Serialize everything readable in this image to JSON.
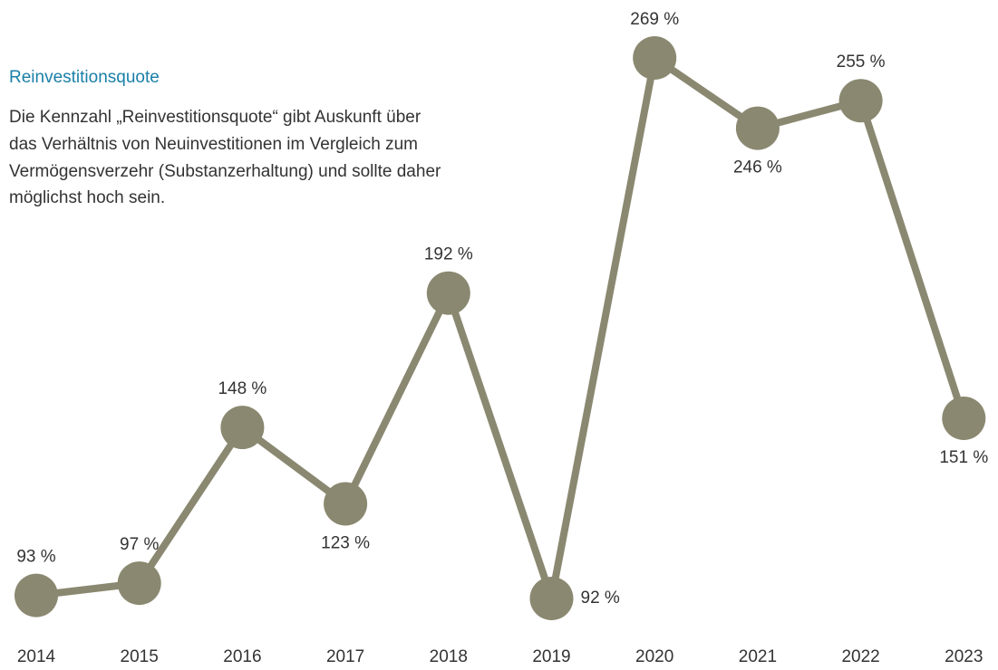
{
  "chart_data": {
    "type": "line",
    "title": "Reinvestitionsquote",
    "subtitle": [
      "Die Kennzahl „Reinvestitionsquote“ gibt Auskunft über",
      "das Verhältnis von Neuinvestitionen im Vergleich zum",
      "Vermögensverzehr (Substanzerhaltung) und sollte daher",
      "möglichst hoch sein."
    ],
    "categories": [
      "2014",
      "2015",
      "2016",
      "2017",
      "2018",
      "2019",
      "2020",
      "2021",
      "2022",
      "2023"
    ],
    "values": [
      93,
      97,
      148,
      123,
      192,
      92,
      269,
      246,
      255,
      151
    ],
    "value_labels": [
      "93 %",
      "97 %",
      "148 %",
      "123 %",
      "192 %",
      "92 %",
      "269 %",
      "246 %",
      "255 %",
      "151 %"
    ],
    "color": "#8a8870"
  }
}
